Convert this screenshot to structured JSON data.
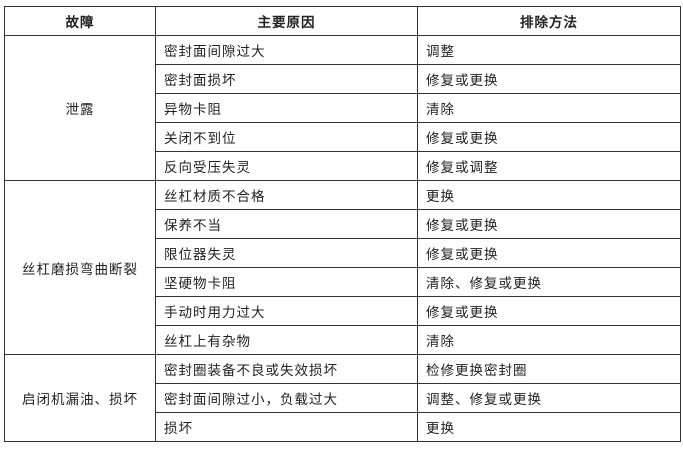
{
  "headers": [
    "故障",
    "主要原因",
    "排除方法"
  ],
  "groups": [
    {
      "fault": "泄露",
      "rows": [
        {
          "cause": "密封面间隙过大",
          "remedy": "调整"
        },
        {
          "cause": "密封面损坏",
          "remedy": "修复或更换"
        },
        {
          "cause": "异物卡阻",
          "remedy": "清除"
        },
        {
          "cause": "关闭不到位",
          "remedy": "修复或更换"
        },
        {
          "cause": "反向受压失灵",
          "remedy": "修复或调整"
        }
      ]
    },
    {
      "fault": "丝杠磨损弯曲断裂",
      "rows": [
        {
          "cause": "丝杠材质不合格",
          "remedy": "更换"
        },
        {
          "cause": "保养不当",
          "remedy": "修复或更换"
        },
        {
          "cause": "限位器失灵",
          "remedy": "修复或更换"
        },
        {
          "cause": "坚硬物卡阻",
          "remedy": "清除、修复或更换"
        },
        {
          "cause": "手动时用力过大",
          "remedy": "修复或更换"
        },
        {
          "cause": "丝杠上有杂物",
          "remedy": "清除"
        }
      ]
    },
    {
      "fault": "启闭机漏油、损坏",
      "rows": [
        {
          "cause": "密封圈装备不良或失效损坏",
          "remedy": "检修更换密封圈"
        },
        {
          "cause": "密封面间隙过小，负载过大",
          "remedy": "调整、修复或更换"
        },
        {
          "cause": "损坏",
          "remedy": "更换"
        }
      ]
    }
  ]
}
